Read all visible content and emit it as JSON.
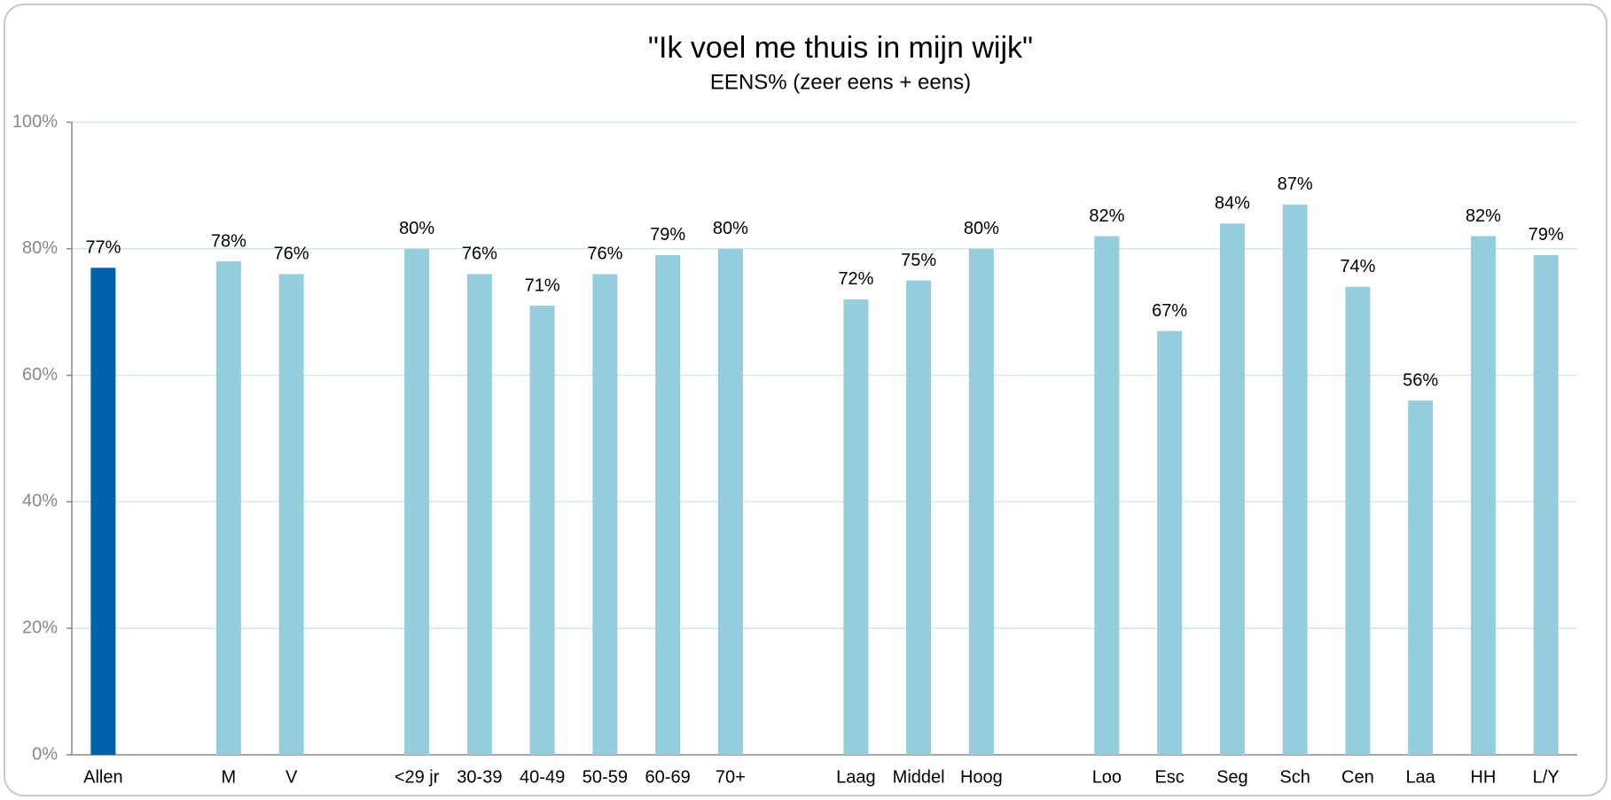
{
  "chart_data": {
    "type": "bar",
    "title": "\"Ik voel me thuis in mijn wijk\"",
    "subtitle": "EENS% (zeer eens + eens)",
    "categories": [
      "Allen",
      null,
      "M",
      "V",
      null,
      "<29 jr",
      "30-39",
      "40-49",
      "50-59",
      "60-69",
      "70+",
      null,
      "Laag",
      "Middel",
      "Hoog",
      null,
      "Loo",
      "Esc",
      "Seg",
      "Sch",
      "Cen",
      "Laa",
      "HH",
      "L/Y"
    ],
    "values": [
      77,
      null,
      78,
      76,
      null,
      80,
      76,
      71,
      76,
      79,
      80,
      null,
      72,
      75,
      80,
      null,
      82,
      67,
      84,
      87,
      74,
      56,
      82,
      79
    ],
    "value_labels": [
      "77%",
      null,
      "78%",
      "76%",
      null,
      "80%",
      "76%",
      "71%",
      "76%",
      "79%",
      "80%",
      null,
      "72%",
      "75%",
      "80%",
      null,
      "82%",
      "67%",
      "84%",
      "87%",
      "74%",
      "56%",
      "82%",
      "79%"
    ],
    "colors": [
      "#0062a8",
      null,
      "#95cddd",
      "#95cddd",
      null,
      "#95cddd",
      "#95cddd",
      "#95cddd",
      "#95cddd",
      "#95cddd",
      "#95cddd",
      null,
      "#95cddd",
      "#95cddd",
      "#95cddd",
      null,
      "#95cddd",
      "#95cddd",
      "#95cddd",
      "#95cddd",
      "#95cddd",
      "#95cddd",
      "#95cddd",
      "#95cddd"
    ],
    "ylim": [
      0,
      100
    ],
    "yticks": [
      {
        "value": 0,
        "label": "0%"
      },
      {
        "value": 20,
        "label": "20%"
      },
      {
        "value": 40,
        "label": "40%"
      },
      {
        "value": 60,
        "label": "60%"
      },
      {
        "value": 80,
        "label": "80%"
      },
      {
        "value": 100,
        "label": "100%"
      }
    ],
    "grid": true
  }
}
